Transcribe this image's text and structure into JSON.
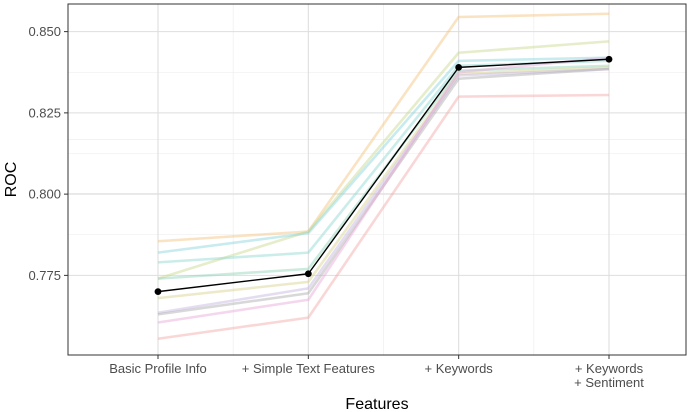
{
  "chart_data": {
    "type": "line",
    "xlabel": "Features",
    "ylabel": "ROC",
    "categories": [
      [
        "Basic Profile Info"
      ],
      [
        "+ Simple Text Features"
      ],
      [
        "+ Keywords"
      ],
      [
        "+ Keywords",
        "+ Sentiment"
      ]
    ],
    "yticks": [
      0.775,
      0.8,
      0.825,
      0.85
    ],
    "ytick_labels": [
      "0.775",
      "0.800",
      "0.825",
      "0.850"
    ],
    "ylim": [
      0.7505,
      0.8585
    ],
    "grid": true,
    "background_series": [
      {
        "color": "#f4c07a",
        "values": [
          0.7855,
          0.7885,
          0.8545,
          0.8555
        ]
      },
      {
        "color": "#c6d68a",
        "values": [
          0.774,
          0.7885,
          0.8435,
          0.847
        ]
      },
      {
        "color": "#86d2dc",
        "values": [
          0.782,
          0.788,
          0.841,
          0.842
        ]
      },
      {
        "color": "#8cd8d0",
        "values": [
          0.779,
          0.782,
          0.8395,
          0.841
        ]
      },
      {
        "color": "#8fd3b8",
        "values": [
          0.774,
          0.777,
          0.838,
          0.8395
        ]
      },
      {
        "color": "#d7d08a",
        "values": [
          0.768,
          0.773,
          0.837,
          0.839
        ]
      },
      {
        "color": "#c3b4e0",
        "values": [
          0.7635,
          0.771,
          0.8365,
          0.8385
        ]
      },
      {
        "color": "#a9a9a9",
        "values": [
          0.763,
          0.7695,
          0.8355,
          0.8385
        ]
      },
      {
        "color": "#e6a6d8",
        "values": [
          0.7605,
          0.7675,
          0.8375,
          0.842
        ]
      },
      {
        "color": "#f4a6a6",
        "values": [
          0.7555,
          0.762,
          0.83,
          0.8305
        ]
      }
    ],
    "mean_series": {
      "color": "#000000",
      "values": [
        0.77,
        0.7755,
        0.839,
        0.8415
      ]
    }
  }
}
